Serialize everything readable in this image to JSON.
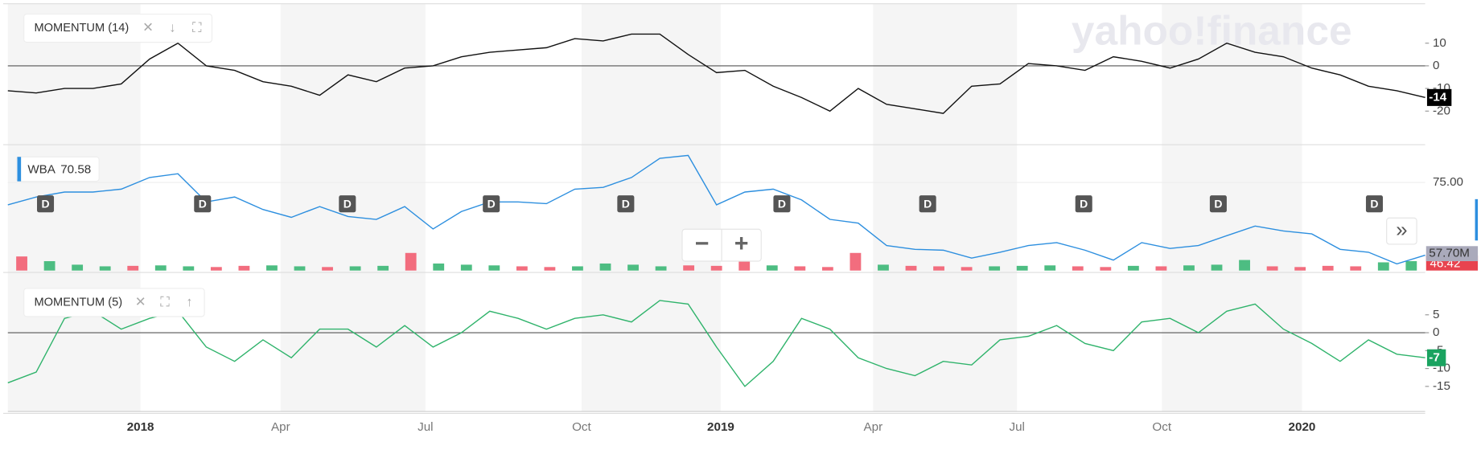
{
  "watermark": "yahoo!finance",
  "time_axis": [
    "2018",
    "Apr",
    "Jul",
    "Oct",
    "2019",
    "Apr",
    "Jul",
    "Oct",
    "2020"
  ],
  "dividends": [
    "D",
    "D",
    "D",
    "D",
    "D",
    "D",
    "D",
    "D",
    "D",
    "D"
  ],
  "controls": [
    "−",
    "+"
  ],
  "scroll": "»",
  "chart_data": [
    {
      "type": "line",
      "title": "MOMENTUM (14)",
      "ylim": [
        -34,
        27
      ],
      "yticks": [
        10,
        0,
        -10,
        -20
      ],
      "zero_line": true,
      "series": [
        {
          "name": "MOMENTUM (14)",
          "color": "#111111",
          "values": [
            -11,
            -12,
            -10,
            -10,
            -8,
            3,
            10,
            0,
            -2,
            -7,
            -9,
            -13,
            -4,
            -7,
            -1,
            0,
            4,
            6,
            7,
            8,
            12,
            11,
            14,
            14,
            5,
            -3,
            -2,
            -9,
            -14,
            -20,
            -10,
            -17,
            -19,
            -21,
            -9,
            -8,
            1,
            0,
            -2,
            4,
            2,
            -1,
            3,
            10,
            6,
            4,
            -1,
            -4,
            -9,
            -11,
            -14
          ]
        }
      ]
    },
    {
      "type": "line",
      "title": "WBA",
      "legend_value": "70.58",
      "ylim": [
        44.7,
        86.7
      ],
      "yticks": [
        {
          "value": 75,
          "label": "75.00"
        }
      ],
      "grid": true,
      "series": [
        {
          "name": "WBA",
          "color": "#2d8fdf",
          "values": [
            67.3,
            70,
            71.7,
            71.7,
            72.7,
            76.7,
            78,
            68.3,
            70,
            65.7,
            63,
            66.7,
            63.3,
            62.3,
            66.7,
            59,
            65,
            68.3,
            68.3,
            67.7,
            72.7,
            73.3,
            76.7,
            83.3,
            84.3,
            67.3,
            71.7,
            72.7,
            69,
            62.3,
            61,
            53.3,
            52,
            51.7,
            49,
            51,
            53.3,
            54.3,
            51.7,
            48.3,
            54.3,
            52.3,
            53.3,
            56.7,
            60,
            58.3,
            57.3,
            52,
            51,
            47,
            50
          ]
        }
      ],
      "volume": {
        "ylim": [
          0,
          160
        ],
        "up_color": "#4dbd82",
        "down_color": "#f26d7e",
        "volume_label": "57.70M",
        "price_label": "46.42",
        "values": [
          60,
          40,
          25,
          18,
          20,
          22,
          18,
          15,
          20,
          22,
          18,
          15,
          18,
          20,
          75,
          30,
          25,
          22,
          18,
          15,
          18,
          30,
          25,
          18,
          22,
          20,
          45,
          22,
          18,
          15,
          75,
          25,
          20,
          18,
          15,
          18,
          20,
          22,
          18,
          15,
          20,
          18,
          22,
          25,
          45,
          18,
          15,
          20,
          18,
          35,
          40
        ],
        "up": [
          false,
          true,
          true,
          true,
          false,
          true,
          true,
          false,
          false,
          true,
          true,
          false,
          true,
          true,
          false,
          true,
          true,
          true,
          false,
          false,
          true,
          true,
          true,
          true,
          false,
          false,
          false,
          true,
          false,
          false,
          false,
          true,
          false,
          false,
          false,
          true,
          true,
          true,
          false,
          false,
          true,
          false,
          true,
          true,
          true,
          false,
          false,
          false,
          false,
          true,
          true
        ]
      }
    },
    {
      "type": "line",
      "title": "MOMENTUM (5)",
      "ylim": [
        -22,
        15
      ],
      "yticks": [
        5,
        0,
        -5,
        -10,
        -15
      ],
      "zero_line": true,
      "series": [
        {
          "name": "MOMENTUM (5)",
          "color": "#2fb36b",
          "values": [
            -14,
            -11,
            4,
            6,
            1,
            4,
            6,
            -4,
            -8,
            -2,
            -7,
            1,
            1,
            -4,
            2,
            -4,
            0,
            6,
            4,
            1,
            4,
            5,
            3,
            9,
            8,
            -4,
            -15,
            -8,
            4,
            1,
            -7,
            -10,
            -12,
            -8,
            -9,
            -2,
            -1,
            2,
            -3,
            -5,
            3,
            4,
            0,
            6,
            8,
            1,
            -3,
            -8,
            -2,
            -6,
            -7
          ]
        }
      ]
    }
  ]
}
